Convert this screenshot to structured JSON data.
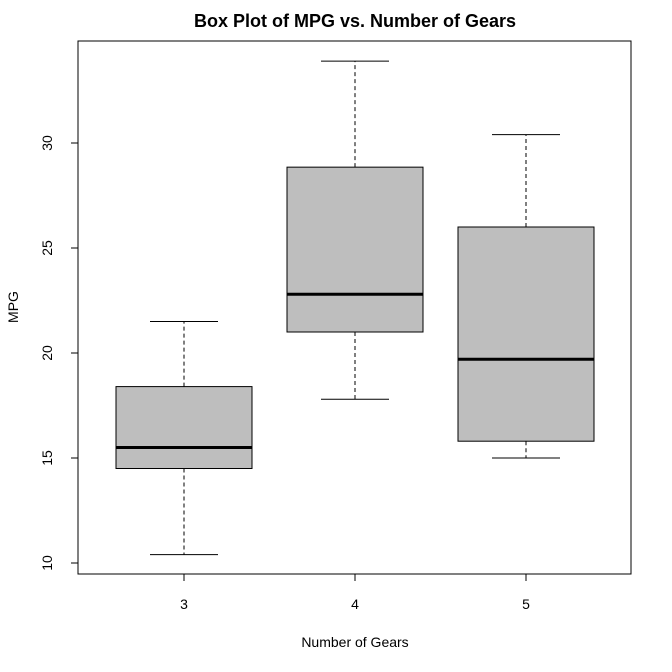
{
  "chart_data": {
    "type": "boxplot",
    "title": "Box Plot of MPG vs. Number of Gears",
    "xlabel": "Number of Gears",
    "ylabel": "MPG",
    "ylim": [
      9.5,
      35
    ],
    "yticks": [
      10,
      15,
      20,
      25,
      30
    ],
    "categories": [
      "3",
      "4",
      "5"
    ],
    "boxes": [
      {
        "category": "3",
        "whisker_low": 10.4,
        "q1": 14.5,
        "median": 15.5,
        "q3": 18.4,
        "whisker_high": 21.5
      },
      {
        "category": "4",
        "whisker_low": 17.8,
        "q1": 21.0,
        "median": 22.8,
        "q3": 28.85,
        "whisker_high": 33.9
      },
      {
        "category": "5",
        "whisker_low": 15.0,
        "q1": 15.8,
        "median": 19.7,
        "q3": 26.0,
        "whisker_high": 30.4
      }
    ],
    "box_fill": "#bebebe",
    "grid": false
  }
}
